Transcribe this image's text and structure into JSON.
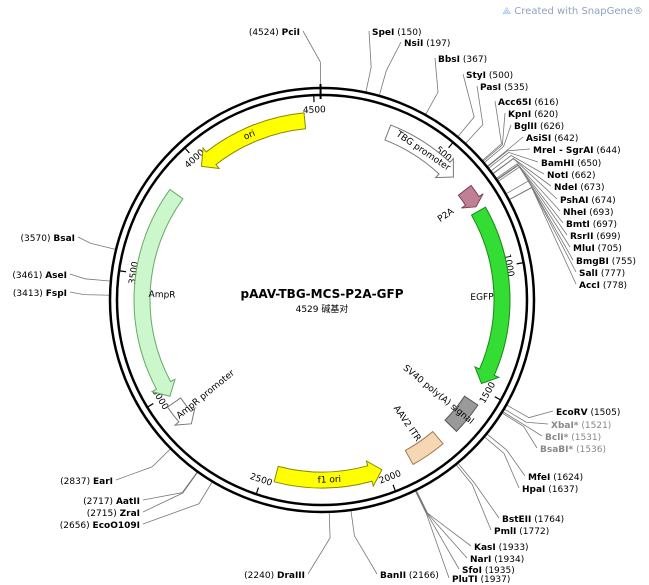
{
  "watermark": "Created with SnapGene®",
  "plasmid": {
    "name": "pAAV-TBG-MCS-P2A-GFP",
    "size_label": "4529 碱基对",
    "length": 4529
  },
  "ticks": [
    {
      "pos": 500,
      "label": "500"
    },
    {
      "pos": 1000,
      "label": "1000"
    },
    {
      "pos": 1500,
      "label": "1500"
    },
    {
      "pos": 2000,
      "label": "2000"
    },
    {
      "pos": 2500,
      "label": "2500"
    },
    {
      "pos": 3000,
      "label": "3000"
    },
    {
      "pos": 3500,
      "label": "3500"
    },
    {
      "pos": 4000,
      "label": "4000"
    },
    {
      "pos": 4500,
      "label": "4500"
    }
  ],
  "features": [
    {
      "name": "TBG promoter",
      "start": 270,
      "end": 590,
      "color": "#ffffff",
      "stroke": "#777777",
      "dir": 1
    },
    {
      "name": "P2A",
      "start": 660,
      "end": 740,
      "color": "#c07f94",
      "stroke": "#7a4456",
      "dir": 1
    },
    {
      "name": "EGFP",
      "start": 760,
      "end": 1480,
      "color": "#33dd33",
      "stroke": "#1a8a1a",
      "dir": 1
    },
    {
      "name": "SV40 poly(A) signal",
      "start": 1560,
      "end": 1690,
      "color": "#9a9a9a",
      "stroke": "#555555",
      "dir": 0
    },
    {
      "name": "AAV2 ITR",
      "start": 1760,
      "end": 1900,
      "color": "#f6d7b4",
      "stroke": "#a07a50",
      "dir": 0
    },
    {
      "name": "f1 ori",
      "start": 2020,
      "end": 2450,
      "color": "#ffff00",
      "stroke": "#888800",
      "dir": -1
    },
    {
      "name": "AmpR promoter",
      "start": 2850,
      "end": 2960,
      "color": "#ffffff",
      "stroke": "#777777",
      "dir": -1
    },
    {
      "name": "AmpR",
      "start": 2990,
      "end": 3850,
      "color": "#ccf7cc",
      "stroke": "#66aa66",
      "dir": -1
    },
    {
      "name": "ori",
      "start": 4000,
      "end": 4460,
      "color": "#ffff00",
      "stroke": "#888800",
      "dir": -1
    }
  ],
  "sites": [
    {
      "name": "PciI",
      "pos": 4524,
      "grey": false,
      "star": false
    },
    {
      "name": "SpeI",
      "pos": 150,
      "grey": false,
      "star": false
    },
    {
      "name": "NsiI",
      "pos": 197,
      "grey": false,
      "star": false
    },
    {
      "name": "BbsI",
      "pos": 367,
      "grey": false,
      "star": false
    },
    {
      "name": "StyI",
      "pos": 500,
      "grey": false,
      "star": false
    },
    {
      "name": "PasI",
      "pos": 535,
      "grey": false,
      "star": false
    },
    {
      "name": "Acc65I",
      "pos": 616,
      "grey": false,
      "star": false
    },
    {
      "name": "KpnI",
      "pos": 620,
      "grey": false,
      "star": false
    },
    {
      "name": "BglII",
      "pos": 626,
      "grey": false,
      "star": false
    },
    {
      "name": "AsiSI",
      "pos": 642,
      "grey": false,
      "star": false
    },
    {
      "name": "MreI - SgrAI",
      "pos": 644,
      "grey": false,
      "star": false
    },
    {
      "name": "BamHI",
      "pos": 650,
      "grey": false,
      "star": false
    },
    {
      "name": "NotI",
      "pos": 662,
      "grey": false,
      "star": false
    },
    {
      "name": "NdeI",
      "pos": 673,
      "grey": false,
      "star": false
    },
    {
      "name": "PshAI",
      "pos": 674,
      "grey": false,
      "star": false
    },
    {
      "name": "NheI",
      "pos": 693,
      "grey": false,
      "star": false
    },
    {
      "name": "BmtI",
      "pos": 697,
      "grey": false,
      "star": false
    },
    {
      "name": "RsrII",
      "pos": 699,
      "grey": false,
      "star": false
    },
    {
      "name": "MluI",
      "pos": 705,
      "grey": false,
      "star": false
    },
    {
      "name": "BmgBI",
      "pos": 755,
      "grey": false,
      "star": false
    },
    {
      "name": "SalI",
      "pos": 777,
      "grey": false,
      "star": false
    },
    {
      "name": "AccI",
      "pos": 778,
      "grey": false,
      "star": false
    },
    {
      "name": "EcoRV",
      "pos": 1505,
      "grey": false,
      "star": false
    },
    {
      "name": "XbaI*",
      "pos": 1521,
      "grey": true,
      "star": true
    },
    {
      "name": "BclI*",
      "pos": 1531,
      "grey": true,
      "star": true
    },
    {
      "name": "BsaBI*",
      "pos": 1536,
      "grey": true,
      "star": true
    },
    {
      "name": "MfeI",
      "pos": 1624,
      "grey": false,
      "star": false
    },
    {
      "name": "HpaI",
      "pos": 1637,
      "grey": false,
      "star": false
    },
    {
      "name": "BstEII",
      "pos": 1764,
      "grey": false,
      "star": false
    },
    {
      "name": "PmlI",
      "pos": 1772,
      "grey": false,
      "star": false
    },
    {
      "name": "KasI",
      "pos": 1933,
      "grey": false,
      "star": false
    },
    {
      "name": "NarI",
      "pos": 1934,
      "grey": false,
      "star": false
    },
    {
      "name": "SfoI",
      "pos": 1935,
      "grey": false,
      "star": false
    },
    {
      "name": "PluTI",
      "pos": 1937,
      "grey": false,
      "star": false
    },
    {
      "name": "BanII",
      "pos": 2166,
      "grey": false,
      "star": false
    },
    {
      "name": "DraIII",
      "pos": 2240,
      "grey": false,
      "star": false
    },
    {
      "name": "EcoO109I",
      "pos": 2656,
      "grey": false,
      "star": false
    },
    {
      "name": "ZraI",
      "pos": 2715,
      "grey": false,
      "star": false
    },
    {
      "name": "AatII",
      "pos": 2717,
      "grey": false,
      "star": false
    },
    {
      "name": "EarI",
      "pos": 2837,
      "grey": false,
      "star": false
    },
    {
      "name": "FspI",
      "pos": 3413,
      "grey": false,
      "star": false
    },
    {
      "name": "AseI",
      "pos": 3461,
      "grey": false,
      "star": false
    },
    {
      "name": "BsaI",
      "pos": 3570,
      "grey": false,
      "star": false
    }
  ]
}
